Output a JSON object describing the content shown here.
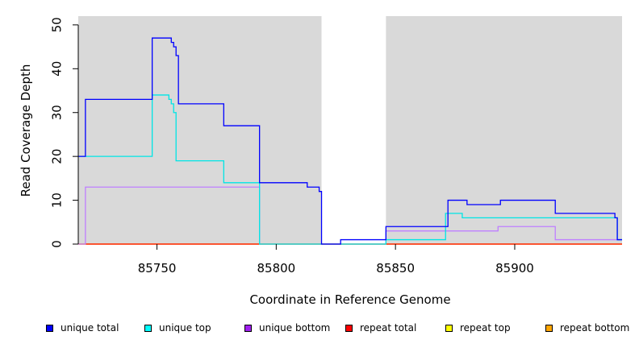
{
  "chart_data": {
    "type": "line",
    "xlabel": "Coordinate in Reference Genome",
    "ylabel": "Read Coverage Depth",
    "xlim": [
      85717,
      85945
    ],
    "ylim": [
      0,
      52
    ],
    "x_ticks": [
      85750,
      85800,
      85850,
      85900
    ],
    "y_ticks": [
      0,
      10,
      20,
      30,
      40,
      50
    ],
    "grid": false,
    "shaded_regions": [
      [
        85717,
        85819
      ],
      [
        85846,
        85945
      ]
    ],
    "legend_position": "bottom",
    "series": [
      {
        "name": "unique total",
        "color": "#0000ff",
        "step": true,
        "points": [
          [
            85717,
            20
          ],
          [
            85720,
            33
          ],
          [
            85748,
            47
          ],
          [
            85756,
            46
          ],
          [
            85757,
            45
          ],
          [
            85758,
            43
          ],
          [
            85759,
            32
          ],
          [
            85778,
            27
          ],
          [
            85793,
            14
          ],
          [
            85813,
            13
          ],
          [
            85818,
            12
          ],
          [
            85819,
            0
          ],
          [
            85827,
            1
          ],
          [
            85846,
            4
          ],
          [
            85872,
            10
          ],
          [
            85880,
            9
          ],
          [
            85894,
            10
          ],
          [
            85917,
            7
          ],
          [
            85942,
            6
          ],
          [
            85943,
            1
          ],
          [
            85945,
            1
          ]
        ]
      },
      {
        "name": "unique top",
        "color": "#00e5e5",
        "step": true,
        "points": [
          [
            85717,
            20
          ],
          [
            85748,
            34
          ],
          [
            85755,
            33
          ],
          [
            85756,
            32
          ],
          [
            85757,
            30
          ],
          [
            85758,
            19
          ],
          [
            85778,
            14
          ],
          [
            85793,
            0
          ],
          [
            85846,
            1
          ],
          [
            85871,
            7
          ],
          [
            85878,
            6
          ],
          [
            85942,
            6
          ],
          [
            85943,
            1
          ],
          [
            85945,
            1
          ]
        ]
      },
      {
        "name": "unique bottom",
        "color": "#bf7fff",
        "step": true,
        "points": [
          [
            85717,
            0
          ],
          [
            85720,
            13
          ],
          [
            85793,
            0
          ],
          [
            85846,
            3
          ],
          [
            85893,
            4
          ],
          [
            85917,
            1
          ],
          [
            85945,
            1
          ]
        ]
      },
      {
        "name": "repeat total",
        "color": "#ff0000",
        "step": true,
        "points": [
          [
            85717,
            0
          ],
          [
            85945,
            0
          ]
        ]
      },
      {
        "name": "repeat top",
        "color": "#ffff00",
        "step": true,
        "points": [
          [
            85717,
            0
          ],
          [
            85945,
            0
          ]
        ]
      },
      {
        "name": "repeat bottom",
        "color": "#ffa500",
        "step": true,
        "points": [
          [
            85717,
            0
          ],
          [
            85945,
            0
          ]
        ]
      }
    ]
  },
  "legend": [
    {
      "label": "unique total",
      "swatch": "#0000ff"
    },
    {
      "label": "unique top",
      "swatch": "#00ffff"
    },
    {
      "label": "unique bottom",
      "swatch": "#a020f0"
    },
    {
      "label": "repeat total",
      "swatch": "#ff0000"
    },
    {
      "label": "repeat top",
      "swatch": "#ffff00"
    },
    {
      "label": "repeat bottom",
      "swatch": "#ffa500"
    }
  ],
  "colors": {
    "shade": "#d9d9d9",
    "axis": "#000000"
  }
}
